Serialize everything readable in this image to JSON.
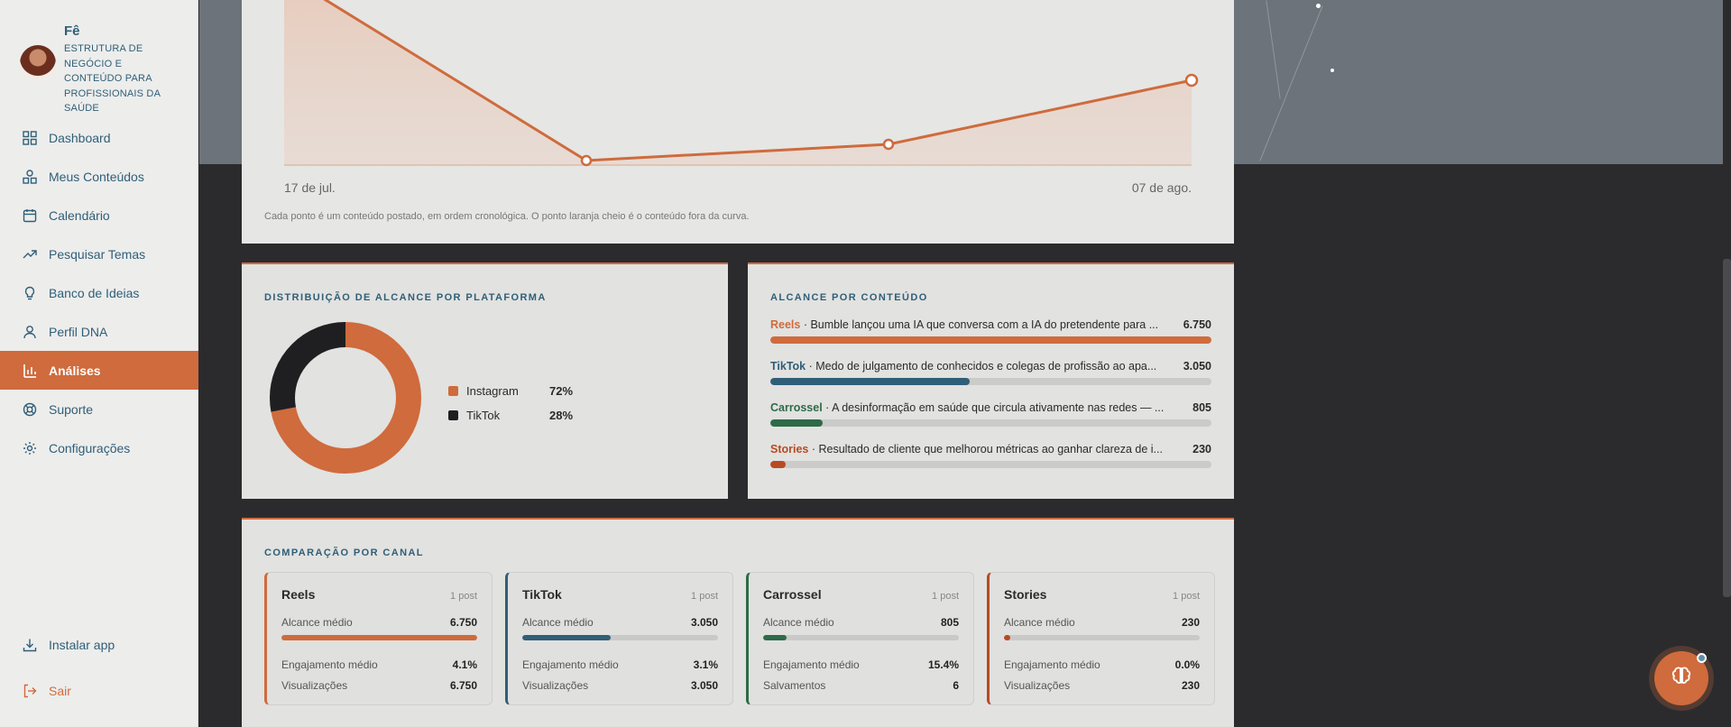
{
  "brand": {
    "name": "Fê",
    "subtitle": "ESTRUTURA DE NEGÓCIO E CONTEÚDO PARA PROFISSIONAIS DA SAÚDE"
  },
  "nav": {
    "items": [
      {
        "label": "Dashboard",
        "icon": "grid-icon"
      },
      {
        "label": "Meus Conteúdos",
        "icon": "shapes-icon"
      },
      {
        "label": "Calendário",
        "icon": "calendar-icon"
      },
      {
        "label": "Pesquisar Temas",
        "icon": "trending-icon"
      },
      {
        "label": "Banco de Ideias",
        "icon": "lightbulb-icon"
      },
      {
        "label": "Perfil DNA",
        "icon": "user-icon"
      },
      {
        "label": "Análises",
        "icon": "bar-chart-icon"
      },
      {
        "label": "Suporte",
        "icon": "lifebuoy-icon"
      },
      {
        "label": "Configurações",
        "icon": "gear-icon"
      }
    ],
    "active": "Análises",
    "install_label": "Instalar app",
    "logout_label": "Sair"
  },
  "timeline": {
    "x_start": "17 de jul.",
    "x_end": "07 de ago.",
    "caption": "Cada ponto é um conteúdo postado, em ordem cronológica. O ponto laranja cheio é o conteúdo fora da curva."
  },
  "distribution": {
    "title": "DISTRIBUIÇÃO DE ALCANCE POR PLATAFORMA",
    "items": [
      {
        "name": "Instagram",
        "pct": "72%",
        "value": 72,
        "color": "#cf6b3d"
      },
      {
        "name": "TikTok",
        "pct": "28%",
        "value": 28,
        "color": "#1f1f22"
      }
    ]
  },
  "reach": {
    "title": "ALCANCE POR CONTEÚDO",
    "items": [
      {
        "platform": "Reels",
        "text": " · Bumble lançou uma IA que conversa com a IA do pretendente para ...",
        "value_label": "6.750",
        "fraction": 1.0,
        "color": "#cf6b3d"
      },
      {
        "platform": "TikTok",
        "text": " · Medo de julgamento de conhecidos e colegas de profissão ao apa...",
        "value_label": "3.050",
        "fraction": 0.452,
        "color": "#2f5f78"
      },
      {
        "platform": "Carrossel",
        "text": " · A desinformação em saúde que circula ativamente nas redes — ...",
        "value_label": "805",
        "fraction": 0.119,
        "color": "#2e6b48"
      },
      {
        "platform": "Stories",
        "text": " · Resultado de cliente que melhorou métricas ao ganhar clareza de i...",
        "value_label": "230",
        "fraction": 0.034,
        "color": "#b84a22"
      }
    ]
  },
  "comparison": {
    "title": "COMPARAÇÃO POR CANAL",
    "channels": [
      {
        "name": "Reels",
        "posts": "1 post",
        "reach_label": "Alcance médio",
        "reach": "6.750",
        "fraction": 1.0,
        "color": "#cf6b3d",
        "eng_label": "Engajamento médio",
        "eng": "4.1%",
        "extra_label": "Visualizações",
        "extra": "6.750"
      },
      {
        "name": "TikTok",
        "posts": "1 post",
        "reach_label": "Alcance médio",
        "reach": "3.050",
        "fraction": 0.452,
        "color": "#2f5f78",
        "eng_label": "Engajamento médio",
        "eng": "3.1%",
        "extra_label": "Visualizações",
        "extra": "3.050"
      },
      {
        "name": "Carrossel",
        "posts": "1 post",
        "reach_label": "Alcance médio",
        "reach": "805",
        "fraction": 0.119,
        "color": "#2e6b48",
        "eng_label": "Engajamento médio",
        "eng": "15.4%",
        "extra_label": "Salvamentos",
        "extra": "6"
      },
      {
        "name": "Stories",
        "posts": "1 post",
        "reach_label": "Alcance médio",
        "reach": "230",
        "fraction": 0.034,
        "color": "#b84a22",
        "eng_label": "Engajamento médio",
        "eng": "0.0%",
        "extra_label": "Visualizações",
        "extra": "230"
      }
    ]
  },
  "assistant": {
    "icon": "brain-icon"
  }
}
